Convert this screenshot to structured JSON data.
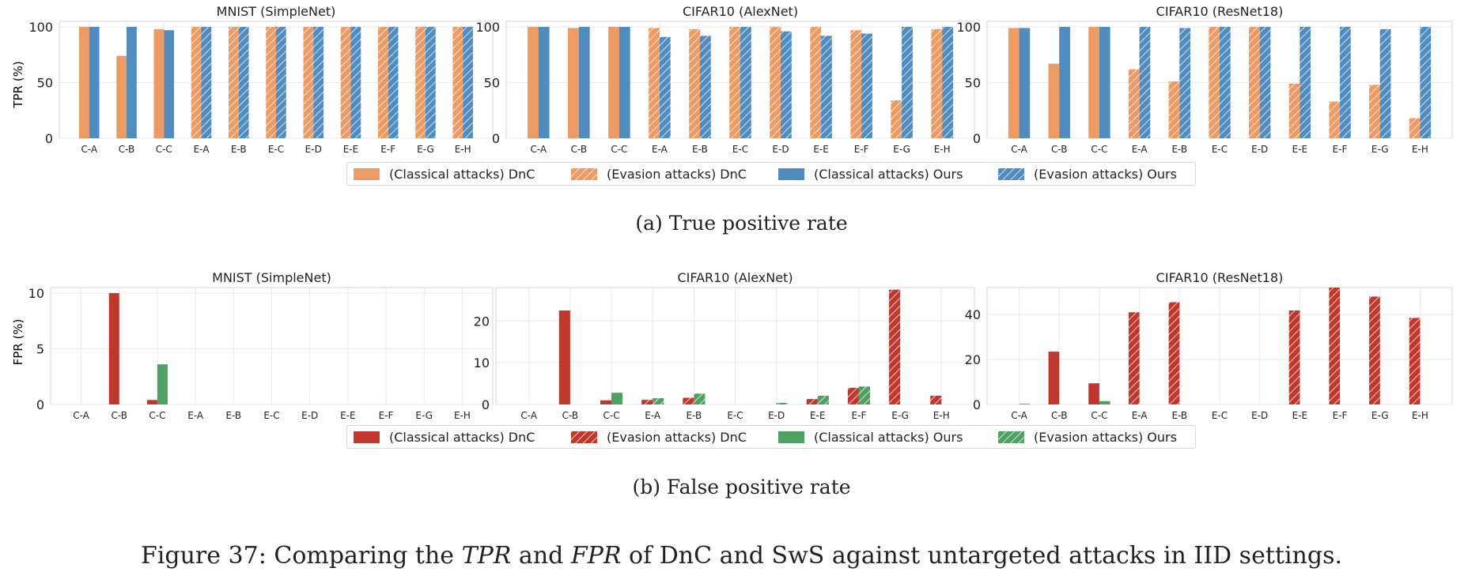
{
  "categories": [
    "C-A",
    "C-B",
    "C-C",
    "E-A",
    "E-B",
    "E-C",
    "E-D",
    "E-E",
    "E-F",
    "E-G",
    "E-H"
  ],
  "colors": {
    "tpr_dnc": "#ee9a63",
    "tpr_ours": "#4f8cbf",
    "fpr_dnc": "#c2372c",
    "fpr_ours": "#4fa161"
  },
  "tpr_section": {
    "ylabel": "TPR (%)",
    "caption": "(a)  True positive rate",
    "legend": [
      "(Classical attacks) DnC",
      "(Evasion attacks) DnC",
      "(Classical attacks) Ours",
      "(Evasion attacks) Ours"
    ]
  },
  "fpr_section": {
    "ylabel": "FPR (%)",
    "caption": "(b)  False positive rate",
    "legend": [
      "(Classical attacks) DnC",
      "(Evasion attacks) DnC",
      "(Classical attacks) Ours",
      "(Evasion attacks) Ours"
    ]
  },
  "figure_caption": {
    "prefix": "Figure 37: Comparing the ",
    "tpr": "TPR",
    "and": " and ",
    "fpr": "FPR",
    "suffix": " of DnC and SwS against untargeted attacks in IID settings."
  },
  "chart_data": [
    {
      "type": "bar",
      "metric": "TPR",
      "title": "MNIST (SimpleNet)",
      "ylabel": "TPR (%)",
      "ylim": [
        0,
        105
      ],
      "yticks": [
        0,
        50,
        100
      ],
      "categories": [
        "C-A",
        "C-B",
        "C-C",
        "E-A",
        "E-B",
        "E-C",
        "E-D",
        "E-E",
        "E-F",
        "E-G",
        "E-H"
      ],
      "series": [
        {
          "name": "DnC",
          "values": [
            100,
            74,
            98,
            100,
            100,
            100,
            100,
            100,
            100,
            100,
            100
          ]
        },
        {
          "name": "Ours",
          "values": [
            100,
            100,
            97,
            100,
            100,
            100,
            100,
            100,
            100,
            100,
            100
          ]
        }
      ]
    },
    {
      "type": "bar",
      "metric": "TPR",
      "title": "CIFAR10 (AlexNet)",
      "ylim": [
        0,
        105
      ],
      "yticks": [
        0,
        50,
        100
      ],
      "categories": [
        "C-A",
        "C-B",
        "C-C",
        "E-A",
        "E-B",
        "E-C",
        "E-D",
        "E-E",
        "E-F",
        "E-G",
        "E-H"
      ],
      "series": [
        {
          "name": "DnC",
          "values": [
            100,
            99,
            100,
            99,
            98,
            100,
            100,
            100,
            97,
            34,
            98
          ]
        },
        {
          "name": "Ours",
          "values": [
            100,
            100,
            100,
            91,
            92,
            100,
            96,
            92,
            94,
            100,
            100
          ]
        }
      ]
    },
    {
      "type": "bar",
      "metric": "TPR",
      "title": "CIFAR10 (ResNet18)",
      "ylim": [
        0,
        105
      ],
      "yticks": [
        0,
        50,
        100
      ],
      "categories": [
        "C-A",
        "C-B",
        "C-C",
        "E-A",
        "E-B",
        "E-C",
        "E-D",
        "E-E",
        "E-F",
        "E-G",
        "E-H"
      ],
      "series": [
        {
          "name": "DnC",
          "values": [
            99,
            67,
            100,
            62,
            51,
            100,
            100,
            49,
            33,
            48,
            18
          ]
        },
        {
          "name": "Ours",
          "values": [
            99,
            100,
            100,
            100,
            99,
            100,
            100,
            100,
            100,
            98,
            100
          ]
        }
      ]
    },
    {
      "type": "bar",
      "metric": "FPR",
      "title": "MNIST (SimpleNet)",
      "ylabel": "FPR (%)",
      "ylim": [
        0,
        10.5
      ],
      "yticks": [
        0,
        5,
        10
      ],
      "categories": [
        "C-A",
        "C-B",
        "C-C",
        "E-A",
        "E-B",
        "E-C",
        "E-D",
        "E-E",
        "E-F",
        "E-G",
        "E-H"
      ],
      "series": [
        {
          "name": "DnC",
          "values": [
            0,
            10,
            0.4,
            0,
            0,
            0,
            0,
            0,
            0,
            0,
            0
          ]
        },
        {
          "name": "Ours",
          "values": [
            0,
            0,
            3.6,
            0,
            0,
            0,
            0,
            0,
            0,
            0,
            0
          ]
        }
      ]
    },
    {
      "type": "bar",
      "metric": "FPR",
      "title": "CIFAR10 (AlexNet)",
      "ylim": [
        0,
        28
      ],
      "yticks": [
        0,
        10,
        20
      ],
      "categories": [
        "C-A",
        "C-B",
        "C-C",
        "E-A",
        "E-B",
        "E-C",
        "E-D",
        "E-E",
        "E-F",
        "E-G",
        "E-H"
      ],
      "series": [
        {
          "name": "DnC",
          "values": [
            0,
            22.5,
            1,
            1.1,
            1.6,
            0,
            0,
            1.3,
            4,
            27.5,
            2.1
          ]
        },
        {
          "name": "Ours",
          "values": [
            0,
            0,
            2.8,
            1.5,
            2.6,
            0,
            0.4,
            2.1,
            4.3,
            0,
            0
          ]
        }
      ]
    },
    {
      "type": "bar",
      "metric": "FPR",
      "title": "CIFAR10 (ResNet18)",
      "ylim": [
        0,
        52
      ],
      "yticks": [
        0,
        20,
        40
      ],
      "categories": [
        "C-A",
        "C-B",
        "C-C",
        "E-A",
        "E-B",
        "E-C",
        "E-D",
        "E-E",
        "E-F",
        "E-G",
        "E-H"
      ],
      "series": [
        {
          "name": "DnC",
          "values": [
            0,
            23.5,
            9.4,
            41,
            45.5,
            0,
            0,
            41.8,
            52,
            48,
            38.5
          ]
        },
        {
          "name": "Ours",
          "values": [
            0.3,
            0,
            1.5,
            0,
            0,
            0,
            0,
            0,
            0,
            0,
            0
          ]
        }
      ]
    }
  ]
}
